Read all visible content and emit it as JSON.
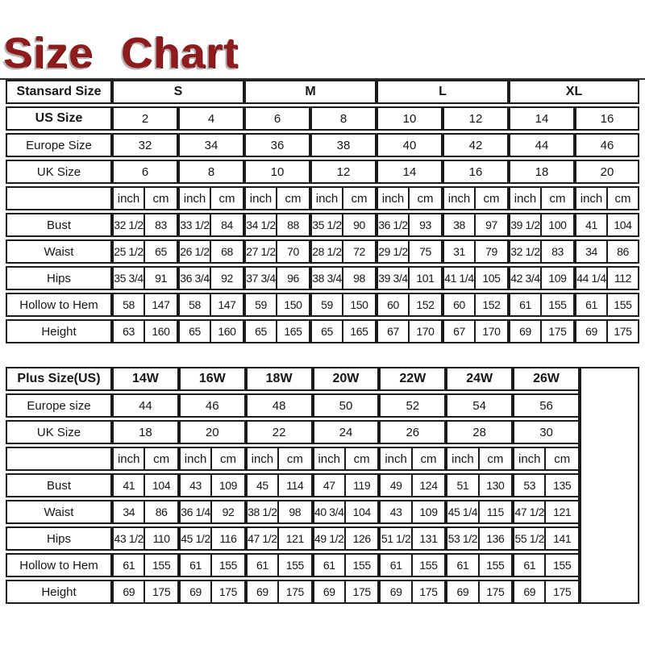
{
  "title": "Size Chart",
  "table1": {
    "header": {
      "label": "Stansard Size",
      "groups": [
        "S",
        "M",
        "L",
        "XL"
      ]
    },
    "size_rows": [
      {
        "label": "US Size",
        "values": [
          "2",
          "4",
          "6",
          "8",
          "10",
          "12",
          "14",
          "16"
        ]
      },
      {
        "label": "Europe Size",
        "values": [
          "32",
          "34",
          "36",
          "38",
          "40",
          "42",
          "44",
          "46"
        ]
      },
      {
        "label": "UK Size",
        "values": [
          "6",
          "8",
          "10",
          "12",
          "14",
          "16",
          "18",
          "20"
        ]
      }
    ],
    "units": [
      "inch",
      "cm",
      "inch",
      "cm",
      "inch",
      "cm",
      "inch",
      "cm",
      "inch",
      "cm",
      "inch",
      "cm",
      "inch",
      "cm",
      "inch",
      "cm"
    ],
    "measure_rows": [
      {
        "label": "Bust",
        "values": [
          "32 1/2",
          "83",
          "33 1/2",
          "84",
          "34 1/2",
          "88",
          "35 1/2",
          "90",
          "36 1/2",
          "93",
          "38",
          "97",
          "39 1/2",
          "100",
          "41",
          "104"
        ]
      },
      {
        "label": "Waist",
        "values": [
          "25 1/2",
          "65",
          "26 1/2",
          "68",
          "27 1/2",
          "70",
          "28 1/2",
          "72",
          "29 1/2",
          "75",
          "31",
          "79",
          "32 1/2",
          "83",
          "34",
          "86"
        ]
      },
      {
        "label": "Hips",
        "values": [
          "35 3/4",
          "91",
          "36 3/4",
          "92",
          "37 3/4",
          "96",
          "38 3/4",
          "98",
          "39 3/4",
          "101",
          "41 1/4",
          "105",
          "42 3/4",
          "109",
          "44 1/4",
          "112"
        ]
      },
      {
        "label": "Hollow to Hem",
        "values": [
          "58",
          "147",
          "58",
          "147",
          "59",
          "150",
          "59",
          "150",
          "60",
          "152",
          "60",
          "152",
          "61",
          "155",
          "61",
          "155"
        ]
      },
      {
        "label": "Height",
        "values": [
          "63",
          "160",
          "65",
          "160",
          "65",
          "165",
          "65",
          "165",
          "67",
          "170",
          "67",
          "170",
          "69",
          "175",
          "69",
          "175"
        ]
      }
    ]
  },
  "table2": {
    "header": {
      "label": "Plus Size(US)",
      "groups": [
        "14W",
        "16W",
        "18W",
        "20W",
        "22W",
        "24W",
        "26W"
      ]
    },
    "size_rows": [
      {
        "label": "Europe size",
        "values": [
          "44",
          "46",
          "48",
          "50",
          "52",
          "54",
          "56"
        ]
      },
      {
        "label": "UK Size",
        "values": [
          "18",
          "20",
          "22",
          "24",
          "26",
          "28",
          "30"
        ]
      }
    ],
    "units": [
      "inch",
      "cm",
      "inch",
      "cm",
      "inch",
      "cm",
      "inch",
      "cm",
      "inch",
      "cm",
      "inch",
      "cm",
      "inch",
      "cm"
    ],
    "measure_rows": [
      {
        "label": "Bust",
        "values": [
          "41",
          "104",
          "43",
          "109",
          "45",
          "114",
          "47",
          "119",
          "49",
          "124",
          "51",
          "130",
          "53",
          "135"
        ]
      },
      {
        "label": "Waist",
        "values": [
          "34",
          "86",
          "36 1/4",
          "92",
          "38 1/2",
          "98",
          "40 3/4",
          "104",
          "43",
          "109",
          "45 1/4",
          "115",
          "47 1/2",
          "121"
        ]
      },
      {
        "label": "Hips",
        "values": [
          "43 1/2",
          "110",
          "45 1/2",
          "116",
          "47 1/2",
          "121",
          "49 1/2",
          "126",
          "51 1/2",
          "131",
          "53 1/2",
          "136",
          "55 1/2",
          "141"
        ]
      },
      {
        "label": "Hollow to Hem",
        "values": [
          "61",
          "155",
          "61",
          "155",
          "61",
          "155",
          "61",
          "155",
          "61",
          "155",
          "61",
          "155",
          "61",
          "155"
        ]
      },
      {
        "label": "Height",
        "values": [
          "69",
          "175",
          "69",
          "175",
          "69",
          "175",
          "69",
          "175",
          "69",
          "175",
          "69",
          "175",
          "69",
          "175"
        ]
      }
    ]
  },
  "colors": {
    "title_red": "#8e1c1c",
    "title_shadow_gray": "#b3b3b3",
    "border_black": "#1b1b1b",
    "background": "#ffffff"
  }
}
